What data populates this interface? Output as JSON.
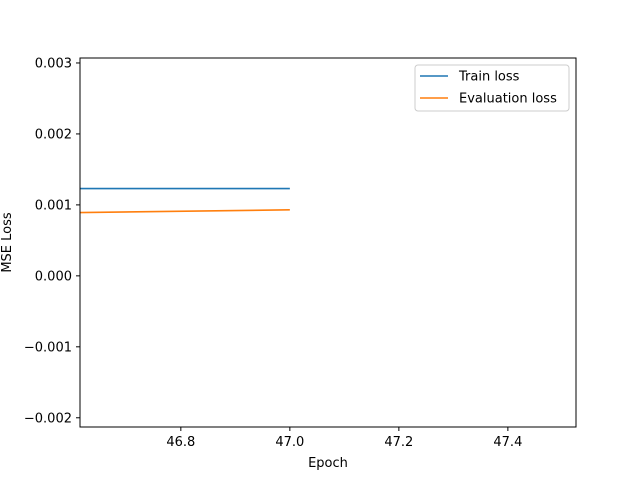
{
  "chart_data": {
    "type": "line",
    "title": "",
    "xlabel": "Epoch",
    "ylabel": "MSE Loss",
    "xlim": [
      46.615,
      47.525
    ],
    "ylim": [
      -0.00213,
      0.00307
    ],
    "xticks": [
      46.8,
      47.0,
      47.2,
      47.4
    ],
    "xtick_labels": [
      "46.8",
      "47.0",
      "47.2",
      "47.4"
    ],
    "yticks": [
      -0.002,
      -0.001,
      0.0,
      0.001,
      0.002,
      0.003
    ],
    "ytick_labels": [
      "−0.002",
      "−0.001",
      "0.000",
      "0.001",
      "0.002",
      "0.003"
    ],
    "grid": false,
    "legend_position": "top-right",
    "series": [
      {
        "name": "Train loss",
        "color": "#1f77b4",
        "x": [
          46.6,
          47.0
        ],
        "y": [
          0.00123,
          0.00123
        ]
      },
      {
        "name": "Evaluation loss",
        "color": "#ff7f0e",
        "x": [
          46.6,
          47.0
        ],
        "y": [
          0.00089,
          0.00093
        ]
      }
    ]
  }
}
